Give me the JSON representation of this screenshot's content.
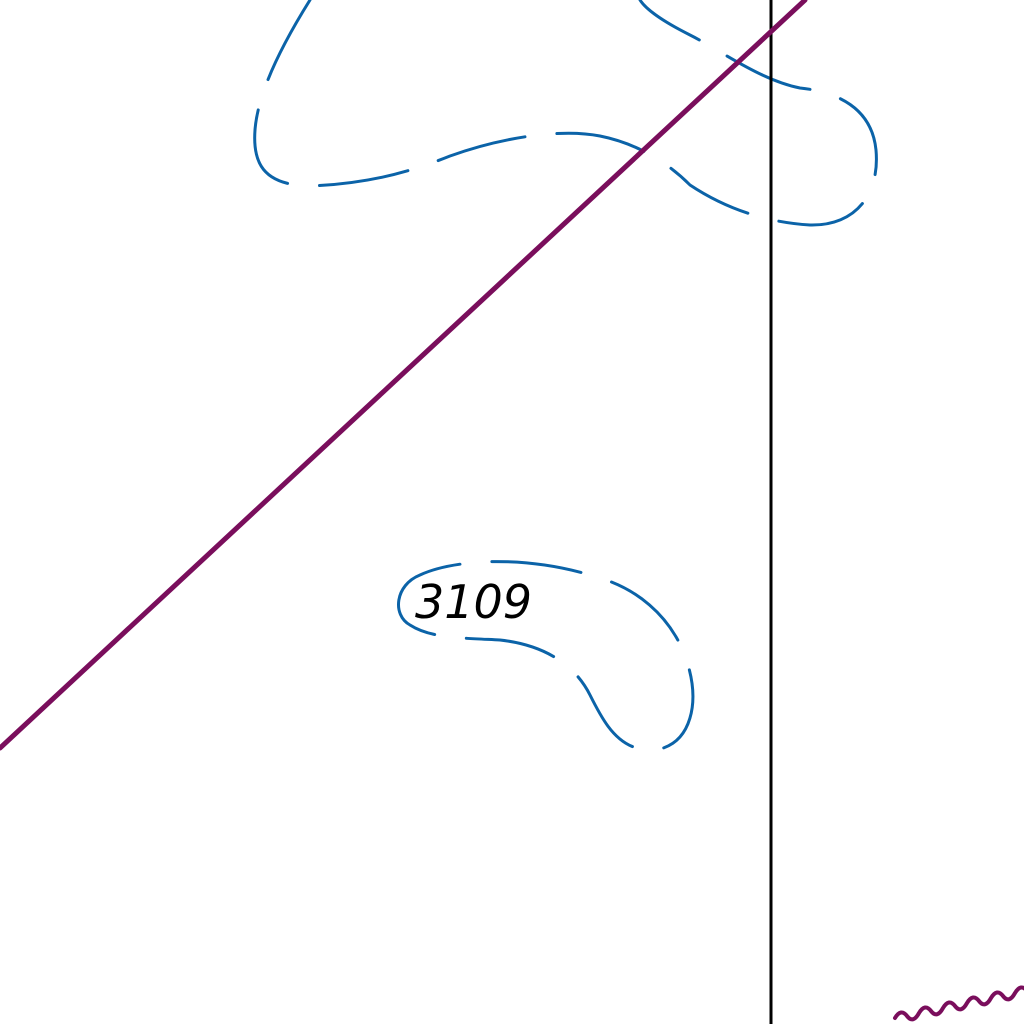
{
  "map": {
    "colors": {
      "contour": "#0b63a8",
      "route": "#7a0e5c",
      "boundary": "#000000",
      "label": "#000000",
      "background": "#ffffff"
    },
    "elevation_labels": [
      {
        "text": "3109"
      }
    ]
  }
}
